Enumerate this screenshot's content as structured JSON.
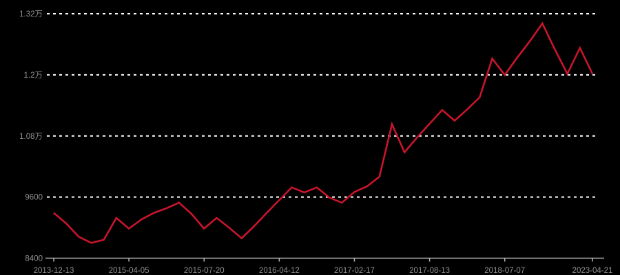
{
  "chart": {
    "background": "#000000",
    "line_color": "#c9152b",
    "grid_color": "#ffffff",
    "axis_color": "#b3b3b3",
    "label_color": "#8f8f8f"
  },
  "chart_data": {
    "type": "line",
    "title": "",
    "xlabel": "",
    "ylabel": "",
    "legend_position": "none",
    "grid": "horizontal-dotted",
    "ylim": [
      8400,
      13200
    ],
    "y_tick_values": [
      8400,
      9600,
      10800,
      12000,
      13200
    ],
    "y_tick_labels": [
      "8400",
      "9600",
      "1.08万",
      "1.2万",
      "1.32万"
    ],
    "x_tick_indices": [
      0,
      6,
      12,
      18,
      24,
      30,
      36,
      43
    ],
    "x_tick_labels": [
      "2013-12-13",
      "2015-04-05",
      "2015-07-20",
      "2016-04-12",
      "2017-02-17",
      "2017-08-13",
      "2018-07-07",
      "2023-04-21"
    ],
    "values": [
      9290,
      9080,
      8820,
      8700,
      8760,
      9190,
      8980,
      9160,
      9290,
      9380,
      9490,
      9270,
      8980,
      9190,
      9000,
      8790,
      9030,
      9290,
      9540,
      9790,
      9690,
      9790,
      9590,
      9490,
      9700,
      9810,
      10000,
      11030,
      10480,
      10770,
      11040,
      11310,
      11100,
      11320,
      11560,
      12320,
      12000,
      12340,
      12660,
      13010,
      12500,
      12020,
      12530,
      12020
    ]
  }
}
